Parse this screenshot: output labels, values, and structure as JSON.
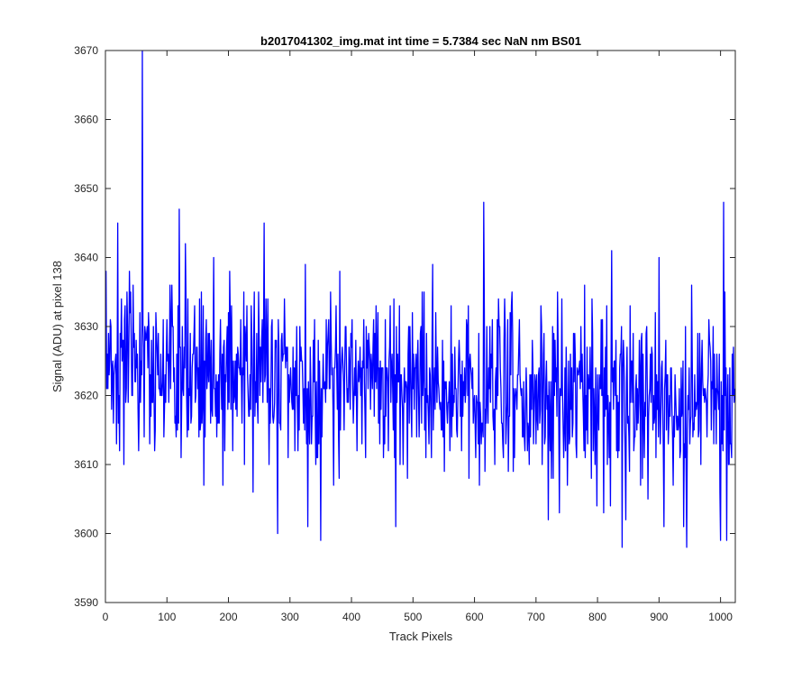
{
  "chart_data": {
    "type": "line",
    "title": "b2017041302_img.mat int time = 5.7384 sec  NaN nm BS01",
    "xlabel": "Track Pixels",
    "ylabel": "Signal (ADU) at pixel 138",
    "xlim": [
      0,
      1024
    ],
    "ylim": [
      3590,
      3670
    ],
    "xticks": [
      "0",
      "100",
      "200",
      "300",
      "400",
      "500",
      "600",
      "700",
      "800",
      "900",
      "1000"
    ],
    "yticks": [
      "3590",
      "3600",
      "3610",
      "3620",
      "3630",
      "3640",
      "3650",
      "3660",
      "3670"
    ],
    "grid": false,
    "series": [
      {
        "color": "#0000ff",
        "noise": {
          "n_points": 1024,
          "mean_start": 3624,
          "mean_end": 3619,
          "spread": 6.5
        },
        "x": [
          0,
          10,
          20,
          30,
          60,
          120,
          160,
          240,
          258,
          280,
          350,
          615,
          720,
          810,
          840,
          900,
          940,
          945,
          1000,
          1005,
          1010
        ],
        "values": [
          3629,
          3618,
          3645,
          3610,
          3670,
          3647,
          3607,
          3606,
          3645,
          3600,
          3599,
          3648,
          3602,
          3603,
          3598,
          3640,
          3601,
          3598,
          3599,
          3648,
          3599
        ]
      }
    ]
  }
}
